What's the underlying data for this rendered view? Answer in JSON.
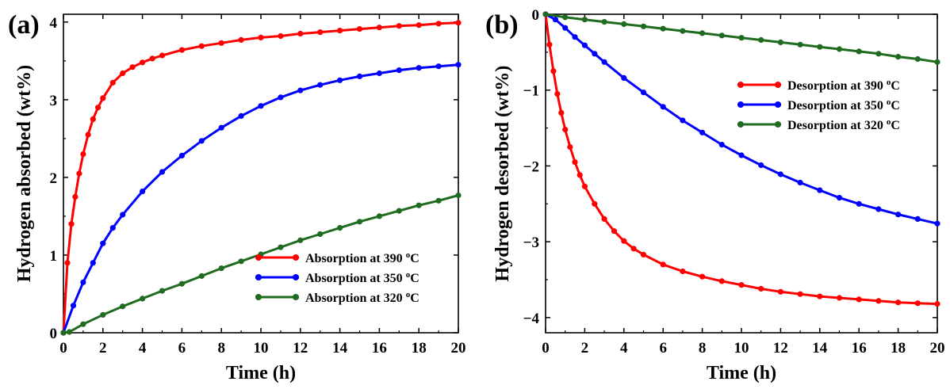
{
  "chart_data": [
    {
      "panel_label": "(a)",
      "type": "line",
      "xlabel": "Time  (h)",
      "ylabel": "Hydrogen absorbed (wt%)",
      "xlim": [
        0,
        20
      ],
      "ylim": [
        0,
        4.1
      ],
      "xticks": [
        "0",
        "2",
        "4",
        "6",
        "8",
        "10",
        "12",
        "14",
        "16",
        "18",
        "20"
      ],
      "yticks": [
        "0",
        "1",
        "2",
        "3",
        "4"
      ],
      "legend_position": "bottom-right",
      "grid": false,
      "series": [
        {
          "name": "Absorption at 390 °C",
          "color": "#ff0000",
          "x": [
            0,
            0.2,
            0.4,
            0.6,
            0.8,
            1,
            1.25,
            1.5,
            1.75,
            2,
            2.5,
            3,
            3.5,
            4,
            4.5,
            5,
            6,
            7,
            8,
            9,
            10,
            11,
            12,
            13,
            14,
            15,
            16,
            17,
            18,
            19,
            20
          ],
          "y": [
            0,
            0.9,
            1.4,
            1.75,
            2.05,
            2.3,
            2.55,
            2.75,
            2.9,
            3.02,
            3.22,
            3.34,
            3.42,
            3.48,
            3.53,
            3.57,
            3.64,
            3.69,
            3.73,
            3.77,
            3.8,
            3.82,
            3.85,
            3.87,
            3.89,
            3.91,
            3.93,
            3.95,
            3.96,
            3.98,
            3.99
          ]
        },
        {
          "name": "Absorption at 350 °C",
          "color": "#0000ff",
          "x": [
            0,
            0.5,
            1,
            1.5,
            2,
            2.5,
            3,
            4,
            5,
            6,
            7,
            8,
            9,
            10,
            11,
            12,
            13,
            14,
            15,
            16,
            17,
            18,
            19,
            20
          ],
          "y": [
            0,
            0.35,
            0.65,
            0.9,
            1.15,
            1.35,
            1.52,
            1.82,
            2.07,
            2.28,
            2.47,
            2.64,
            2.79,
            2.92,
            3.03,
            3.12,
            3.19,
            3.25,
            3.3,
            3.34,
            3.38,
            3.41,
            3.43,
            3.45
          ]
        },
        {
          "name": "Absorption at 320 °C",
          "color": "#1f6b1f",
          "x": [
            0,
            0.3,
            1,
            2,
            3,
            4,
            5,
            6,
            7,
            8,
            9,
            10,
            11,
            12,
            13,
            14,
            15,
            16,
            17,
            18,
            19,
            20
          ],
          "y": [
            0,
            0.01,
            0.11,
            0.23,
            0.34,
            0.44,
            0.54,
            0.63,
            0.73,
            0.83,
            0.92,
            1.01,
            1.1,
            1.19,
            1.27,
            1.35,
            1.43,
            1.5,
            1.57,
            1.64,
            1.7,
            1.77
          ]
        }
      ]
    },
    {
      "panel_label": "(b)",
      "type": "line",
      "xlabel": "Time  (h)",
      "ylabel": "Hydrogen desorbed (wt%)",
      "xlim": [
        0,
        20
      ],
      "ylim": [
        -4.2,
        0
      ],
      "xticks": [
        "0",
        "2",
        "4",
        "6",
        "8",
        "10",
        "12",
        "14",
        "16",
        "18",
        "20"
      ],
      "yticks": [
        "0",
        "-1",
        "-2",
        "-3",
        "-4"
      ],
      "legend_position": "top-right",
      "grid": false,
      "series": [
        {
          "name": "Desorption at 390 °C",
          "color": "#ff0000",
          "x": [
            0,
            0.2,
            0.4,
            0.6,
            0.8,
            1,
            1.25,
            1.5,
            1.75,
            2,
            2.5,
            3,
            3.5,
            4,
            4.5,
            5,
            6,
            7,
            8,
            9,
            10,
            11,
            12,
            13,
            14,
            15,
            16,
            17,
            18,
            19,
            20
          ],
          "y": [
            0,
            -0.4,
            -0.75,
            -1.05,
            -1.3,
            -1.52,
            -1.75,
            -1.95,
            -2.12,
            -2.27,
            -2.5,
            -2.7,
            -2.86,
            -2.99,
            -3.09,
            -3.17,
            -3.3,
            -3.39,
            -3.46,
            -3.52,
            -3.57,
            -3.62,
            -3.66,
            -3.69,
            -3.72,
            -3.74,
            -3.76,
            -3.78,
            -3.8,
            -3.81,
            -3.82
          ]
        },
        {
          "name": "Desorption at 350 °C",
          "color": "#0000ff",
          "x": [
            0,
            0.5,
            1,
            1.5,
            2,
            2.5,
            3,
            4,
            5,
            6,
            7,
            8,
            9,
            10,
            11,
            12,
            13,
            14,
            15,
            16,
            17,
            18,
            19,
            20
          ],
          "y": [
            0,
            -0.07,
            -0.18,
            -0.3,
            -0.41,
            -0.52,
            -0.63,
            -0.84,
            -1.03,
            -1.22,
            -1.4,
            -1.56,
            -1.72,
            -1.86,
            -1.99,
            -2.11,
            -2.22,
            -2.32,
            -2.42,
            -2.5,
            -2.57,
            -2.64,
            -2.7,
            -2.76
          ]
        },
        {
          "name": "Desorption at 320 °C",
          "color": "#1f6b1f",
          "x": [
            0,
            1,
            2,
            3,
            4,
            5,
            6,
            7,
            8,
            9,
            10,
            11,
            12,
            13,
            14,
            15,
            16,
            17,
            18,
            19,
            20
          ],
          "y": [
            0,
            -0.04,
            -0.07,
            -0.1,
            -0.13,
            -0.16,
            -0.19,
            -0.22,
            -0.25,
            -0.28,
            -0.31,
            -0.34,
            -0.37,
            -0.4,
            -0.43,
            -0.46,
            -0.49,
            -0.52,
            -0.56,
            -0.59,
            -0.63
          ]
        }
      ]
    }
  ]
}
